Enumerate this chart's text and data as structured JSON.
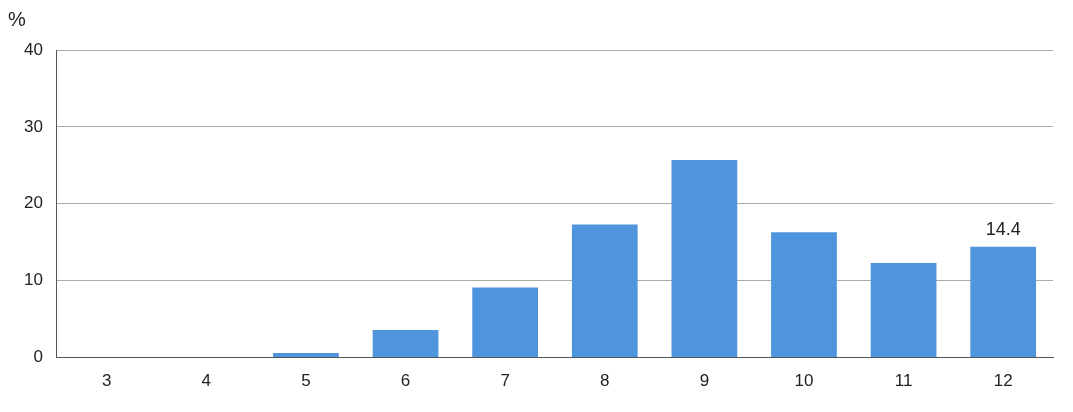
{
  "chart_data": {
    "type": "bar",
    "ylabel": "%",
    "categories": [
      "3",
      "4",
      "5",
      "6",
      "7",
      "8",
      "9",
      "10",
      "11",
      "12"
    ],
    "values": [
      0,
      0,
      0.6,
      3.6,
      9.1,
      17.3,
      25.7,
      16.3,
      12.3,
      14.4
    ],
    "value_labels": [
      null,
      null,
      null,
      null,
      null,
      null,
      null,
      null,
      null,
      "14.4"
    ],
    "color": "#4f95de",
    "ylim": [
      0,
      40
    ],
    "yticks": [
      0,
      10,
      20,
      30,
      40
    ],
    "grid": "y",
    "legend": false
  }
}
